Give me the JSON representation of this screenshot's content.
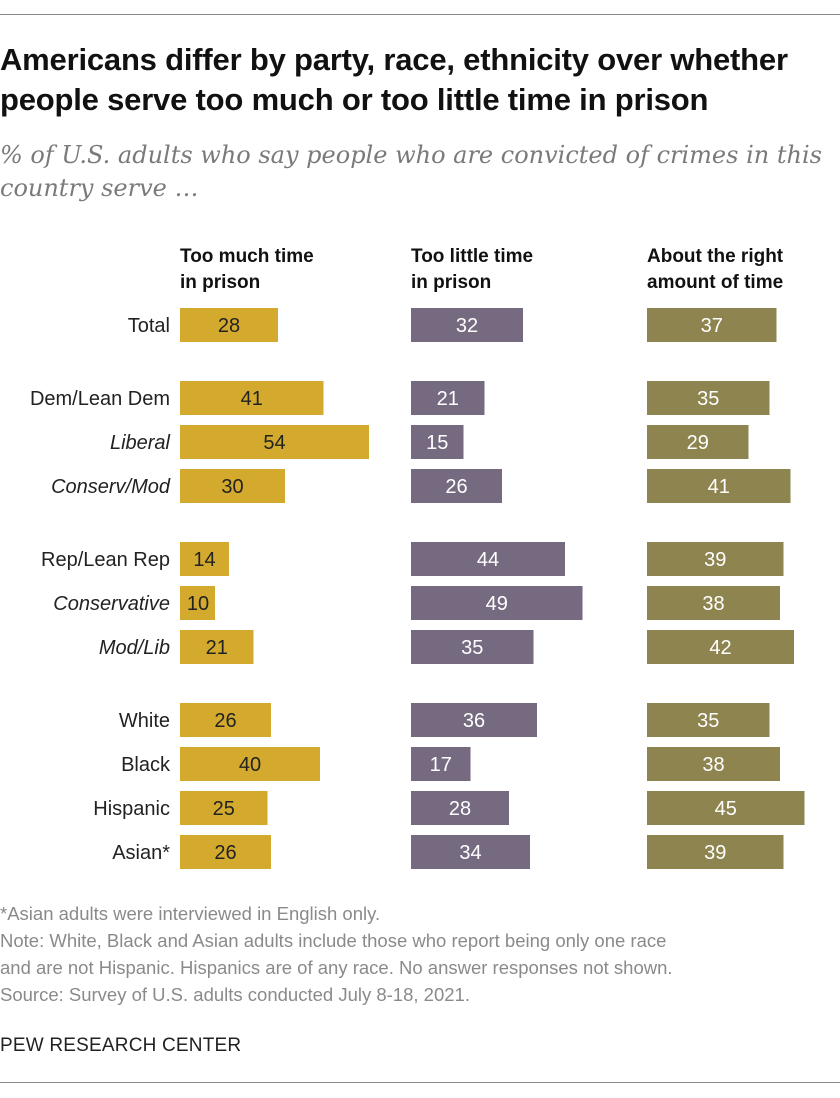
{
  "title": "Americans differ by party, race, ethnicity over whether people serve too much or too little time in prison",
  "subtitle": "% of U.S. adults who say people who are convicted of crimes in this country serve …",
  "chart_data": {
    "type": "bar",
    "categories": [
      "Total",
      "Dem/Lean Dem",
      "Liberal",
      "Conserv/Mod",
      "Rep/Lean Rep",
      "Conservative",
      "Mod/Lib",
      "White",
      "Black",
      "Hispanic",
      "Asian*"
    ],
    "italic_categories": [
      "Liberal",
      "Conserv/Mod",
      "Conservative",
      "Mod/Lib"
    ],
    "groups": [
      [
        0
      ],
      [
        1,
        2,
        3
      ],
      [
        4,
        5,
        6
      ],
      [
        7,
        8,
        9,
        10
      ]
    ],
    "series": [
      {
        "name": "Too much time in prison",
        "header_lines": [
          "Too much time",
          "in prison"
        ],
        "color": "#d4aa2e",
        "values": [
          28,
          41,
          54,
          30,
          14,
          10,
          21,
          26,
          40,
          25,
          26
        ]
      },
      {
        "name": "Too little time in prison",
        "header_lines": [
          "Too little time",
          "in prison"
        ],
        "color": "#766a80",
        "values": [
          32,
          21,
          15,
          26,
          44,
          49,
          35,
          36,
          17,
          28,
          34
        ]
      },
      {
        "name": "About the right amount of time",
        "header_lines": [
          "About the right",
          "amount of time"
        ],
        "color": "#8e8450",
        "values": [
          37,
          35,
          29,
          41,
          39,
          38,
          42,
          35,
          38,
          45,
          39
        ]
      }
    ]
  },
  "notes": [
    "*Asian adults were interviewed in English only.",
    "Note: White, Black and Asian adults include those who report being only one race",
    "and are not Hispanic. Hispanics are of any race. No answer responses not shown.",
    "Source: Survey of U.S. adults conducted July 8-18, 2021."
  ],
  "org": "PEW RESEARCH CENTER"
}
